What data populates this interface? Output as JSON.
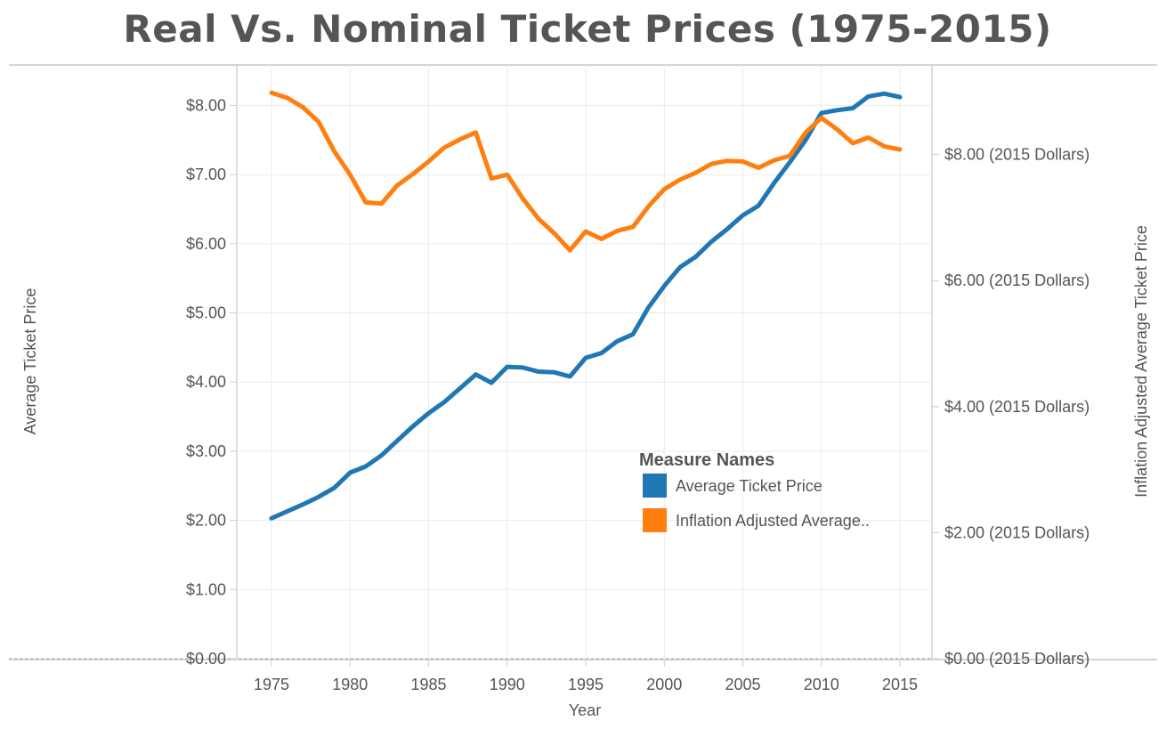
{
  "chart_data": {
    "type": "line",
    "title": "Real Vs. Nominal Ticket Prices (1975-2015)",
    "xlabel": "Year",
    "ylabel": "Average Ticket Price",
    "ylabel_right": "Inflation Adjusted Average Ticket Price",
    "x_ticks": [
      "1975",
      "1980",
      "1985",
      "1990",
      "1995",
      "2000",
      "2005",
      "2010",
      "2015"
    ],
    "y_left_ticks": [
      "$0.00",
      "$1.00",
      "$2.00",
      "$3.00",
      "$4.00",
      "$5.00",
      "$6.00",
      "$7.00",
      "$8.00"
    ],
    "y_right_ticks": [
      "$0.00 (2015 Dollars)",
      "$2.00 (2015 Dollars)",
      "$4.00 (2015 Dollars)",
      "$6.00 (2015 Dollars)",
      "$8.00 (2015 Dollars)"
    ],
    "ylim_left": [
      0,
      8.0
    ],
    "ylim_right": [
      0,
      9.0
    ],
    "xlim": [
      1973.5,
      2016.5
    ],
    "grid": true,
    "legend": {
      "title": "Measure Names",
      "placement": "bottom-right",
      "items": [
        {
          "label": "Average Ticket Price",
          "color": "#1f77b4"
        },
        {
          "label": "Inflation Adjusted Average..",
          "color": "#ff7f0e"
        }
      ]
    },
    "x": [
      1975,
      1976,
      1977,
      1978,
      1979,
      1980,
      1981,
      1982,
      1983,
      1984,
      1985,
      1986,
      1987,
      1988,
      1989,
      1990,
      1991,
      1992,
      1993,
      1994,
      1995,
      1996,
      1997,
      1998,
      1999,
      2000,
      2001,
      2002,
      2003,
      2004,
      2005,
      2006,
      2007,
      2008,
      2009,
      2010,
      2011,
      2012,
      2013,
      2014,
      2015
    ],
    "series": [
      {
        "name": "Average Ticket Price",
        "axis": "left",
        "color": "#1f77b4",
        "values": [
          2.03,
          2.13,
          2.23,
          2.34,
          2.47,
          2.69,
          2.78,
          2.94,
          3.15,
          3.36,
          3.55,
          3.71,
          3.91,
          4.11,
          3.99,
          4.22,
          4.21,
          4.15,
          4.14,
          4.08,
          4.35,
          4.42,
          4.59,
          4.69,
          5.08,
          5.39,
          5.66,
          5.81,
          6.03,
          6.21,
          6.41,
          6.55,
          6.88,
          7.18,
          7.5,
          7.89,
          7.93,
          7.96,
          8.13,
          8.17,
          8.12
        ]
      },
      {
        "name": "Inflation Adjusted Average Ticket Price",
        "axis": "right",
        "color": "#ff7f0e",
        "values": [
          8.98,
          8.9,
          8.75,
          8.52,
          8.05,
          7.68,
          7.24,
          7.22,
          7.51,
          7.69,
          7.89,
          8.11,
          8.24,
          8.35,
          7.62,
          7.68,
          7.3,
          6.98,
          6.75,
          6.48,
          6.78,
          6.66,
          6.79,
          6.85,
          7.18,
          7.45,
          7.6,
          7.71,
          7.85,
          7.9,
          7.89,
          7.79,
          7.91,
          7.98,
          8.35,
          8.58,
          8.4,
          8.18,
          8.27,
          8.13,
          8.08
        ]
      }
    ]
  }
}
